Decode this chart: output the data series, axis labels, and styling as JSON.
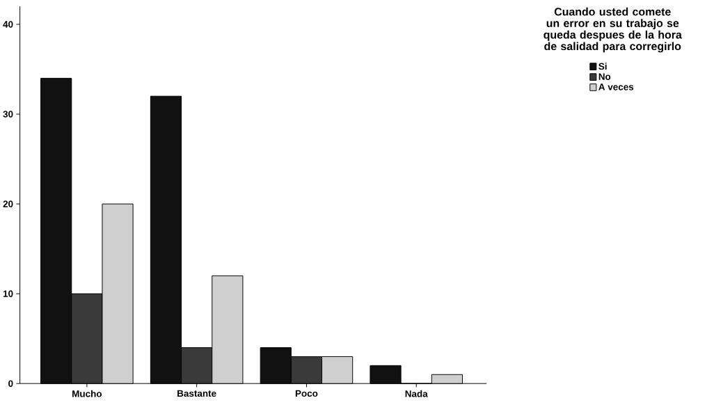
{
  "chart_data": {
    "type": "bar",
    "legend_title": "Cuando usted comete un error en su trabajo se queda despues de la hora de salidad para corregirlo",
    "categories": [
      "Mucho",
      "Bastante",
      "Poco",
      "Nada"
    ],
    "series": [
      {
        "name": "Si",
        "color": "#111111",
        "values": [
          34,
          32,
          4,
          2
        ]
      },
      {
        "name": "No",
        "color": "#3a3a3a",
        "values": [
          10,
          4,
          3,
          0
        ]
      },
      {
        "name": "A veces",
        "color": "#cfcfcf",
        "values": [
          20,
          12,
          3,
          1
        ]
      }
    ],
    "ylim": [
      0,
      42
    ],
    "yticks": [
      0,
      10,
      20,
      30,
      40
    ],
    "legend": "top right"
  }
}
